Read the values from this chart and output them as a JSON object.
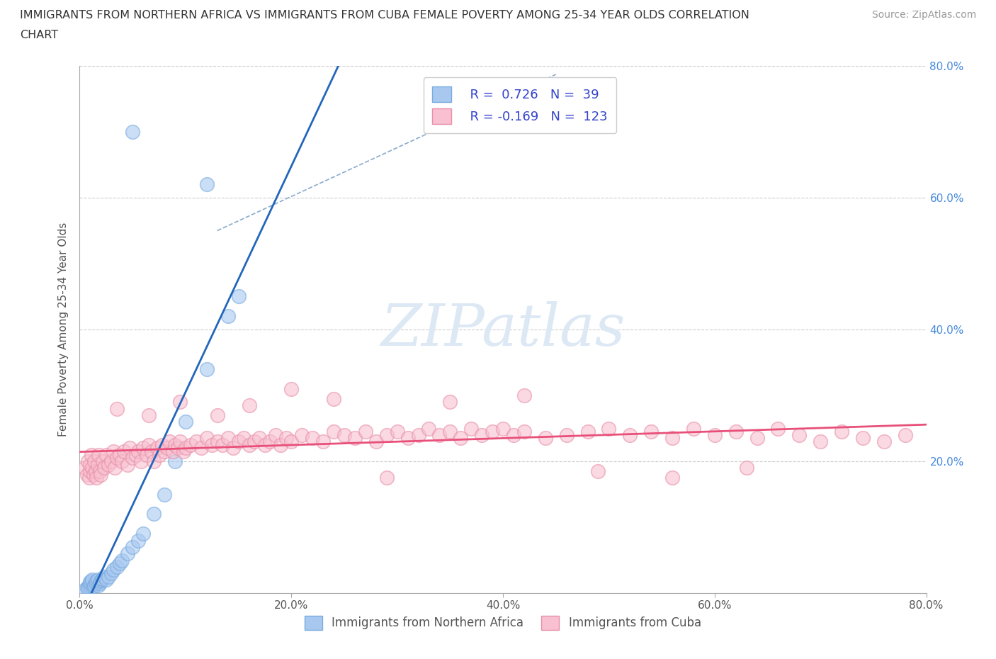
{
  "title_line1": "IMMIGRANTS FROM NORTHERN AFRICA VS IMMIGRANTS FROM CUBA FEMALE POVERTY AMONG 25-34 YEAR OLDS CORRELATION",
  "title_line2": "CHART",
  "source_text": "Source: ZipAtlas.com",
  "ylabel": "Female Poverty Among 25-34 Year Olds",
  "xlim": [
    0.0,
    0.8
  ],
  "ylim": [
    0.0,
    0.8
  ],
  "x_ticks": [
    0.0,
    0.2,
    0.4,
    0.6,
    0.8
  ],
  "y_ticks": [
    0.0,
    0.2,
    0.4,
    0.6,
    0.8
  ],
  "x_tick_labels": [
    "0.0%",
    "20.0%",
    "40.0%",
    "60.0%",
    "80.0%"
  ],
  "y_tick_labels_right": [
    "",
    "20.0%",
    "40.0%",
    "60.0%",
    "80.0%"
  ],
  "series": [
    {
      "name": "Immigrants from Northern Africa",
      "R": 0.726,
      "N": 39,
      "face_color": "#a8c8f0",
      "edge_color": "#7aabdf",
      "line_color": "#2266bb",
      "x": [
        0.005,
        0.007,
        0.008,
        0.009,
        0.01,
        0.01,
        0.011,
        0.012,
        0.013,
        0.014,
        0.015,
        0.016,
        0.017,
        0.018,
        0.019,
        0.02,
        0.021,
        0.022,
        0.023,
        0.025,
        0.027,
        0.03,
        0.032,
        0.035,
        0.038,
        0.04,
        0.045,
        0.05,
        0.055,
        0.06,
        0.07,
        0.08,
        0.09,
        0.1,
        0.12,
        0.14,
        0.15,
        0.12,
        0.05
      ],
      "y": [
        0.005,
        0.008,
        0.01,
        0.012,
        0.015,
        0.017,
        0.018,
        0.02,
        0.01,
        0.012,
        0.015,
        0.018,
        0.02,
        0.012,
        0.015,
        0.018,
        0.02,
        0.022,
        0.025,
        0.02,
        0.025,
        0.03,
        0.035,
        0.04,
        0.045,
        0.05,
        0.06,
        0.07,
        0.08,
        0.09,
        0.12,
        0.15,
        0.2,
        0.26,
        0.34,
        0.42,
        0.45,
        0.62,
        0.7
      ]
    },
    {
      "name": "Immigrants from Cuba",
      "R": -0.169,
      "N": 123,
      "face_color": "#f8c0d0",
      "edge_color": "#e890a8",
      "line_color": "#e8507a",
      "x": [
        0.005,
        0.007,
        0.008,
        0.009,
        0.01,
        0.01,
        0.011,
        0.012,
        0.013,
        0.014,
        0.015,
        0.016,
        0.017,
        0.018,
        0.019,
        0.02,
        0.022,
        0.023,
        0.025,
        0.027,
        0.03,
        0.032,
        0.033,
        0.035,
        0.038,
        0.04,
        0.042,
        0.045,
        0.047,
        0.05,
        0.053,
        0.055,
        0.058,
        0.06,
        0.063,
        0.065,
        0.068,
        0.07,
        0.073,
        0.075,
        0.078,
        0.08,
        0.083,
        0.085,
        0.088,
        0.09,
        0.093,
        0.095,
        0.098,
        0.1,
        0.105,
        0.11,
        0.115,
        0.12,
        0.125,
        0.13,
        0.135,
        0.14,
        0.145,
        0.15,
        0.155,
        0.16,
        0.165,
        0.17,
        0.175,
        0.18,
        0.185,
        0.19,
        0.195,
        0.2,
        0.21,
        0.22,
        0.23,
        0.24,
        0.25,
        0.26,
        0.27,
        0.28,
        0.29,
        0.3,
        0.31,
        0.32,
        0.33,
        0.34,
        0.35,
        0.36,
        0.37,
        0.38,
        0.39,
        0.4,
        0.41,
        0.42,
        0.44,
        0.46,
        0.48,
        0.5,
        0.52,
        0.54,
        0.56,
        0.58,
        0.6,
        0.62,
        0.64,
        0.66,
        0.68,
        0.7,
        0.72,
        0.74,
        0.76,
        0.78,
        0.035,
        0.065,
        0.095,
        0.13,
        0.16,
        0.2,
        0.24,
        0.29,
        0.35,
        0.42,
        0.49,
        0.56,
        0.63
      ],
      "y": [
        0.19,
        0.18,
        0.2,
        0.175,
        0.185,
        0.195,
        0.21,
        0.19,
        0.18,
        0.2,
        0.185,
        0.175,
        0.195,
        0.21,
        0.185,
        0.18,
        0.2,
        0.19,
        0.21,
        0.195,
        0.2,
        0.215,
        0.19,
        0.205,
        0.21,
        0.2,
        0.215,
        0.195,
        0.22,
        0.205,
        0.21,
        0.215,
        0.2,
        0.22,
        0.21,
        0.225,
        0.215,
        0.2,
        0.22,
        0.21,
        0.225,
        0.215,
        0.22,
        0.23,
        0.215,
        0.225,
        0.22,
        0.23,
        0.215,
        0.22,
        0.225,
        0.23,
        0.22,
        0.235,
        0.225,
        0.23,
        0.225,
        0.235,
        0.22,
        0.23,
        0.235,
        0.225,
        0.23,
        0.235,
        0.225,
        0.23,
        0.24,
        0.225,
        0.235,
        0.23,
        0.24,
        0.235,
        0.23,
        0.245,
        0.24,
        0.235,
        0.245,
        0.23,
        0.24,
        0.245,
        0.235,
        0.24,
        0.25,
        0.24,
        0.245,
        0.235,
        0.25,
        0.24,
        0.245,
        0.25,
        0.24,
        0.245,
        0.235,
        0.24,
        0.245,
        0.25,
        0.24,
        0.245,
        0.235,
        0.25,
        0.24,
        0.245,
        0.235,
        0.25,
        0.24,
        0.23,
        0.245,
        0.235,
        0.23,
        0.24,
        0.28,
        0.27,
        0.29,
        0.27,
        0.285,
        0.31,
        0.295,
        0.175,
        0.29,
        0.3,
        0.185,
        0.175,
        0.19
      ]
    }
  ],
  "legend_text_color": "#3344cc",
  "watermark_text": "ZIPatlas",
  "watermark_color": "#dde8f5",
  "background_color": "#ffffff",
  "grid_color": "#cccccc",
  "title_color": "#333333",
  "tick_label_color": "#555555",
  "right_tick_color": "#4488dd"
}
